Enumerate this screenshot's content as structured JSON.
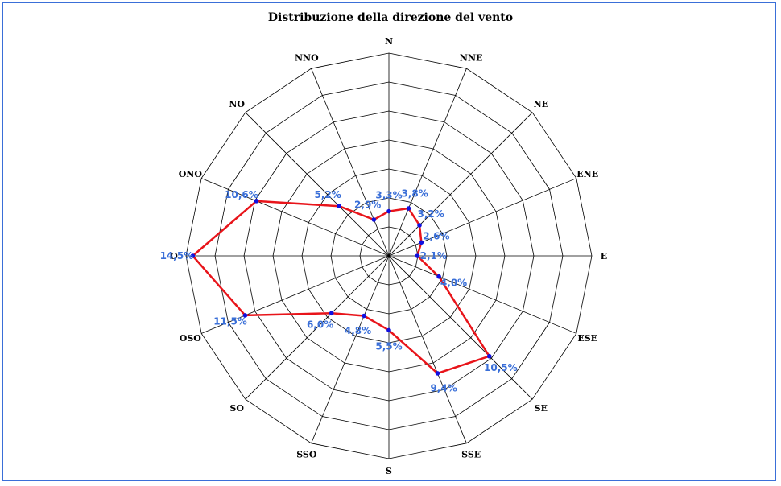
{
  "chart_data": {
    "type": "radar",
    "title": "Distribuzione della direzione del vento",
    "directions": [
      "N",
      "NNE",
      "NE",
      "ENE",
      "E",
      "ESE",
      "SE",
      "SSE",
      "S",
      "SSO",
      "SO",
      "OSO",
      "O",
      "ONO",
      "NO",
      "NNO"
    ],
    "values": [
      3.3,
      3.8,
      3.2,
      2.6,
      2.1,
      4.0,
      10.5,
      9.4,
      5.5,
      4.8,
      6.0,
      11.5,
      14.5,
      10.6,
      5.2,
      2.9
    ],
    "value_labels": [
      "3,3%",
      "3,8%",
      "3,2%",
      "2,6%",
      "2,1%",
      "4,0%",
      "10,5%",
      "9,4%",
      "5,5%",
      "4,8%",
      "6,0%",
      "11,5%",
      "14,5%",
      "10,6%",
      "5,2%",
      "2,9%"
    ],
    "rmax": 15,
    "rings": 7,
    "colors": {
      "series": "#e8141a",
      "marker": "#1010e0",
      "labels": "#3a6fd8",
      "grid": "#000000",
      "border": "#3a6fd8"
    }
  }
}
